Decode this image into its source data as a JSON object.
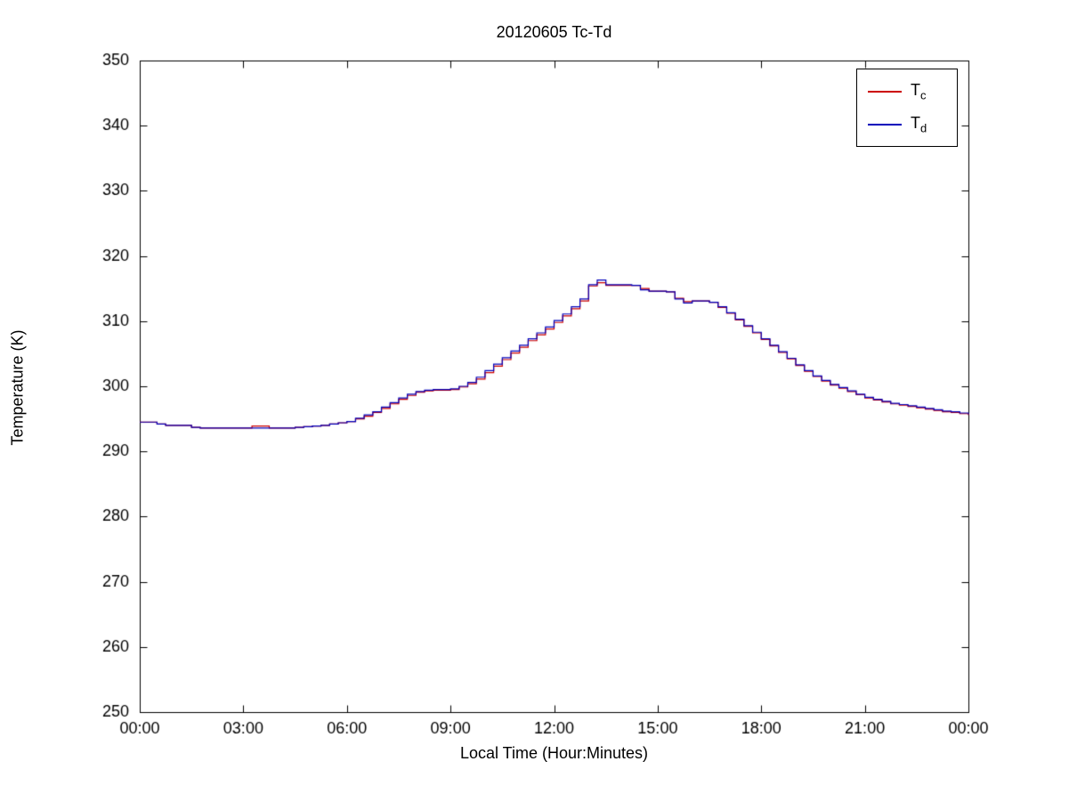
{
  "chart_data": {
    "type": "line",
    "title": "20120605 Tc-Td",
    "xlabel": "Local Time (Hour:Minutes)",
    "ylabel": "Temperature (K)",
    "xlim": [
      0,
      24
    ],
    "ylim": [
      250,
      350
    ],
    "grid": false,
    "line_style": "step",
    "xticks": [
      0,
      3,
      6,
      9,
      12,
      15,
      18,
      21,
      24
    ],
    "xtick_labels": [
      "00:00",
      "03:00",
      "06:00",
      "09:00",
      "12:00",
      "15:00",
      "18:00",
      "21:00",
      "00:00"
    ],
    "yticks": [
      250,
      260,
      270,
      280,
      290,
      300,
      310,
      320,
      330,
      340,
      350
    ],
    "legend": {
      "position": "top-right",
      "entries": [
        {
          "label_main": "T",
          "label_sub": "c",
          "color": "#cc0000"
        },
        {
          "label_main": "T",
          "label_sub": "d",
          "color": "#0000bb"
        }
      ]
    },
    "x": [
      0,
      0.25,
      0.5,
      0.75,
      1,
      1.25,
      1.5,
      1.75,
      2,
      2.25,
      2.5,
      2.75,
      3,
      3.25,
      3.5,
      3.75,
      4,
      4.25,
      4.5,
      4.75,
      5,
      5.25,
      5.5,
      5.75,
      6,
      6.25,
      6.5,
      6.75,
      7,
      7.25,
      7.5,
      7.75,
      8,
      8.25,
      8.5,
      8.75,
      9,
      9.25,
      9.5,
      9.75,
      10,
      10.25,
      10.5,
      10.75,
      11,
      11.25,
      11.5,
      11.75,
      12,
      12.25,
      12.5,
      12.75,
      13,
      13.25,
      13.5,
      13.75,
      14,
      14.25,
      14.5,
      14.75,
      15,
      15.25,
      15.5,
      15.75,
      16,
      16.25,
      16.5,
      16.75,
      17,
      17.25,
      17.5,
      17.75,
      18,
      18.25,
      18.5,
      18.75,
      19,
      19.25,
      19.5,
      19.75,
      20,
      20.25,
      20.5,
      20.75,
      21,
      21.25,
      21.5,
      21.75,
      22,
      22.25,
      22.5,
      22.75,
      23,
      23.25,
      23.5,
      23.75,
      24
    ],
    "series": [
      {
        "name": "Tc",
        "color": "#cc0000",
        "values": [
          294.5,
          294.5,
          294.2,
          294.0,
          294.0,
          294.0,
          293.7,
          293.6,
          293.6,
          293.6,
          293.6,
          293.6,
          293.6,
          293.9,
          293.9,
          293.6,
          293.6,
          293.6,
          293.7,
          293.8,
          293.9,
          294.0,
          294.2,
          294.4,
          294.6,
          295.0,
          295.4,
          296.0,
          296.6,
          297.3,
          298.0,
          298.6,
          299.1,
          299.3,
          299.4,
          299.4,
          299.5,
          299.9,
          300.4,
          301.1,
          302.1,
          303.1,
          304.1,
          305.1,
          306.0,
          307.0,
          307.9,
          308.8,
          309.8,
          310.8,
          311.9,
          313.1,
          315.4,
          315.9,
          315.5,
          315.5,
          315.5,
          315.5,
          315.0,
          314.6,
          314.6,
          314.5,
          313.5,
          313.0,
          313.1,
          313.1,
          312.9,
          312.1,
          311.2,
          310.2,
          309.2,
          308.2,
          307.2,
          306.2,
          305.2,
          304.2,
          303.2,
          302.3,
          301.5,
          300.8,
          300.2,
          299.7,
          299.2,
          298.7,
          298.2,
          297.9,
          297.6,
          297.3,
          297.1,
          296.9,
          296.7,
          296.5,
          296.3,
          296.1,
          296.0,
          295.8,
          295.6
        ]
      },
      {
        "name": "Td",
        "color": "#0000bb",
        "values": [
          294.5,
          294.5,
          294.2,
          294.0,
          294.0,
          294.0,
          293.7,
          293.6,
          293.6,
          293.6,
          293.6,
          293.6,
          293.6,
          293.6,
          293.6,
          293.6,
          293.6,
          293.6,
          293.7,
          293.8,
          293.9,
          294.0,
          294.2,
          294.4,
          294.6,
          295.1,
          295.6,
          296.1,
          296.8,
          297.5,
          298.2,
          298.8,
          299.2,
          299.4,
          299.5,
          299.5,
          299.6,
          300.0,
          300.6,
          301.4,
          302.4,
          303.4,
          304.4,
          305.4,
          306.3,
          307.3,
          308.2,
          309.1,
          310.1,
          311.1,
          312.2,
          313.4,
          315.6,
          316.3,
          315.6,
          315.6,
          315.6,
          315.5,
          314.8,
          314.6,
          314.6,
          314.5,
          313.4,
          312.8,
          313.1,
          313.1,
          312.9,
          312.2,
          311.3,
          310.3,
          309.3,
          308.3,
          307.3,
          306.3,
          305.3,
          304.3,
          303.3,
          302.4,
          301.6,
          300.9,
          300.3,
          299.8,
          299.3,
          298.8,
          298.3,
          298.0,
          297.7,
          297.4,
          297.2,
          297.0,
          296.8,
          296.6,
          296.4,
          296.2,
          296.1,
          295.9,
          295.7
        ]
      }
    ]
  }
}
